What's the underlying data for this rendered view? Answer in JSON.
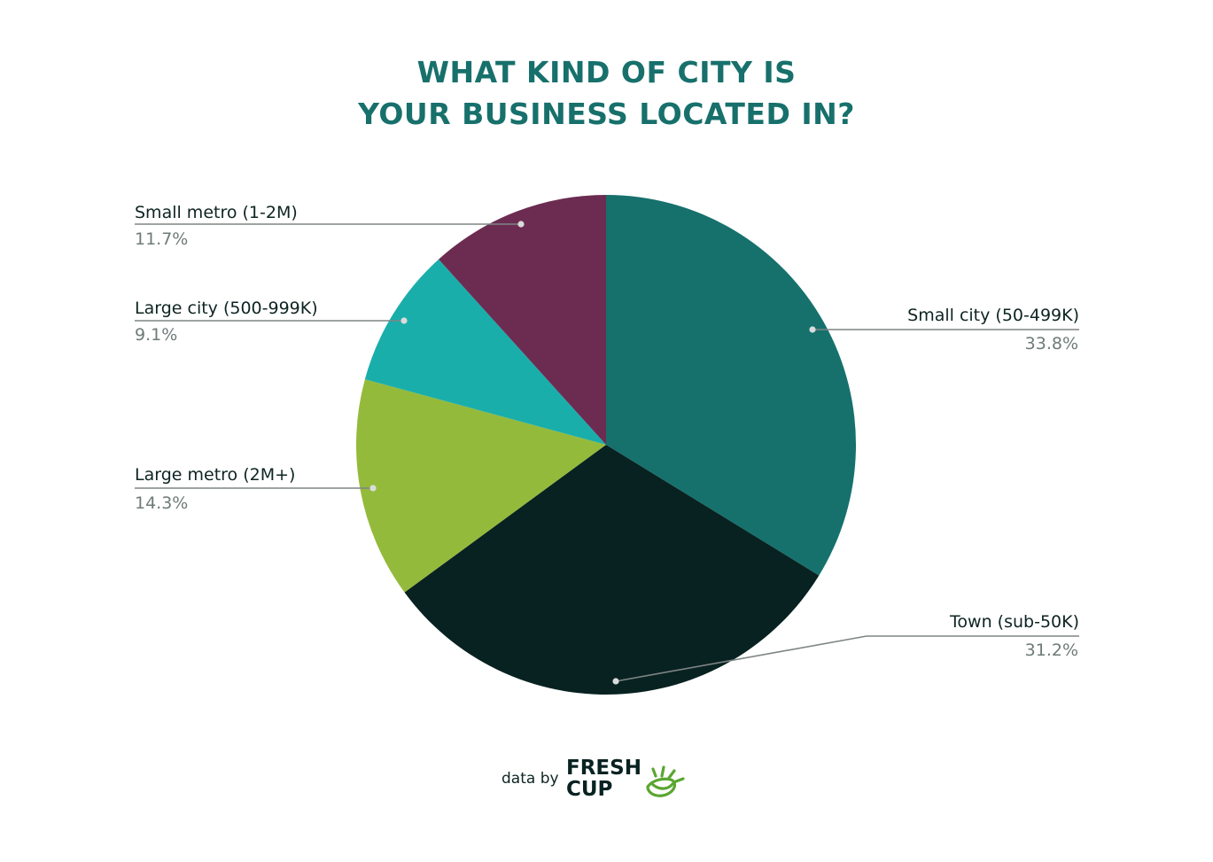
{
  "title_lines": [
    "WHAT KIND OF CITY IS",
    "YOUR BUSINESS LOCATED IN?"
  ],
  "chart_data": {
    "type": "pie",
    "title": "WHAT KIND OF CITY IS YOUR BUSINESS LOCATED IN?",
    "start": "12 o'clock",
    "direction": "clockwise",
    "slices": [
      {
        "label": "Small city (50-499K)",
        "value": 33.8,
        "value_label": "33.8%",
        "color": "#16716d"
      },
      {
        "label": "Town (sub-50K)",
        "value": 31.2,
        "value_label": "31.2%",
        "color": "#082221"
      },
      {
        "label": "Large metro (2M+)",
        "value": 14.3,
        "value_label": "14.3%",
        "color": "#94ba3b"
      },
      {
        "label": "Large city (500-999K)",
        "value": 9.1,
        "value_label": "9.1%",
        "color": "#1aaeab"
      },
      {
        "label": "Small metro (1-2M)",
        "value": 11.7,
        "value_label": "11.7%",
        "color": "#6c2c52"
      }
    ]
  },
  "footer": {
    "data_by": "data by",
    "logo_text": "FRESH CUP"
  }
}
